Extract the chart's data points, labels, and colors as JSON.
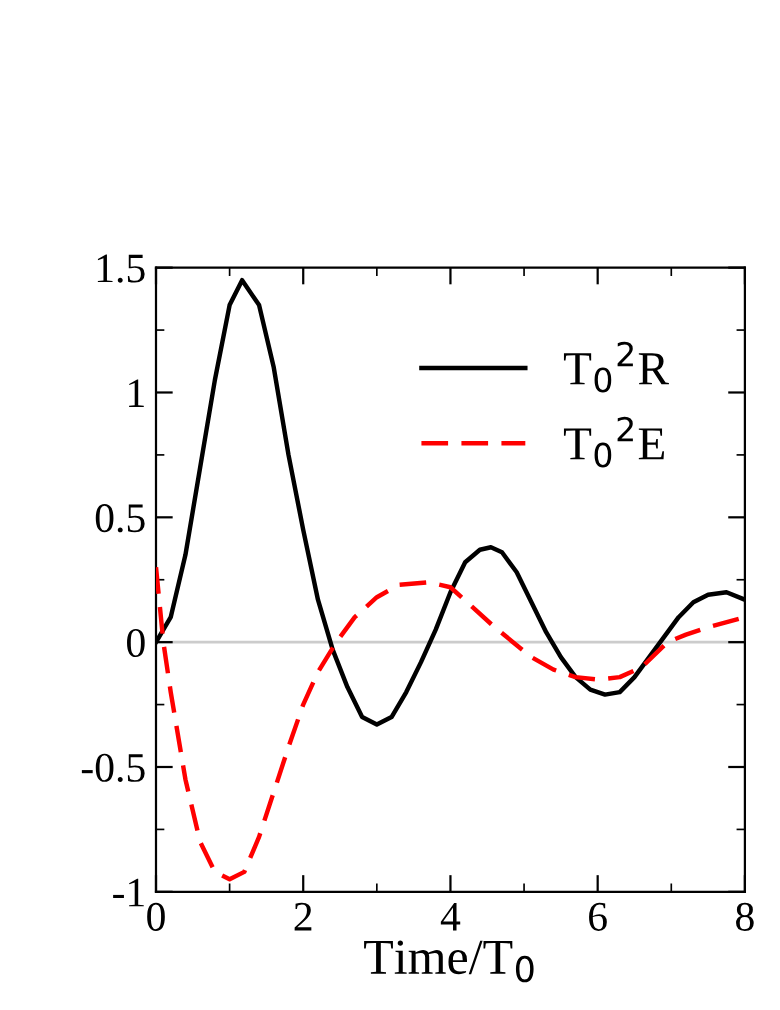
{
  "chart_data": {
    "type": "line",
    "xlabel": "Time/T$_{0}$",
    "xlim": [
      0,
      8
    ],
    "ylim": [
      -1,
      1.5
    ],
    "xticks": [
      0,
      2,
      4,
      6,
      8
    ],
    "yticks": [
      -1,
      -0.5,
      0,
      0.5,
      1,
      1.5
    ],
    "grid": false,
    "legend": "top right",
    "marker": "none",
    "ref_lines": [
      {
        "axis": "y",
        "value": 0,
        "color": "#cccccc",
        "line_style": "solid"
      }
    ],
    "series": [
      {
        "name": "T$_{0}$$^{2}$R",
        "color": "#000000",
        "line_style": "solid",
        "x": [
          0,
          0.2,
          0.4,
          0.6,
          0.8,
          1.0,
          1.17,
          1.4,
          1.6,
          1.8,
          2.0,
          2.2,
          2.4,
          2.6,
          2.8,
          3.0,
          3.2,
          3.4,
          3.6,
          3.8,
          4.0,
          4.2,
          4.4,
          4.55,
          4.7,
          4.9,
          5.1,
          5.3,
          5.5,
          5.7,
          5.9,
          6.1,
          6.3,
          6.5,
          6.7,
          6.9,
          7.1,
          7.3,
          7.5,
          7.75,
          8.0
        ],
        "values": [
          0,
          0.1,
          0.35,
          0.7,
          1.05,
          1.35,
          1.45,
          1.35,
          1.1,
          0.75,
          0.45,
          0.17,
          -0.03,
          -0.18,
          -0.3,
          -0.33,
          -0.3,
          -0.2,
          -0.08,
          0.05,
          0.2,
          0.32,
          0.37,
          0.38,
          0.36,
          0.28,
          0.16,
          0.04,
          -0.06,
          -0.14,
          -0.19,
          -0.21,
          -0.2,
          -0.14,
          -0.06,
          0.02,
          0.1,
          0.16,
          0.19,
          0.2,
          0.17
        ]
      },
      {
        "name": "T$_{0}$$^{2}$E",
        "color": "#ff0000",
        "line_style": "dashed",
        "x": [
          0,
          0.1,
          0.2,
          0.4,
          0.6,
          0.8,
          1.0,
          1.2,
          1.4,
          1.6,
          1.8,
          2.0,
          2.2,
          2.45,
          2.7,
          3.0,
          3.3,
          3.7,
          4.0,
          4.3,
          4.6,
          4.85,
          5.1,
          5.4,
          5.7,
          6.0,
          6.3,
          6.6,
          6.95,
          7.2,
          7.5,
          8.0
        ],
        "values": [
          0.3,
          0.0,
          -0.2,
          -0.55,
          -0.8,
          -0.92,
          -0.95,
          -0.92,
          -0.78,
          -0.6,
          -0.42,
          -0.25,
          -0.12,
          0.0,
          0.1,
          0.18,
          0.23,
          0.24,
          0.22,
          0.14,
          0.06,
          0.0,
          -0.06,
          -0.11,
          -0.14,
          -0.15,
          -0.14,
          -0.1,
          0.0,
          0.03,
          0.06,
          0.1
        ]
      }
    ]
  }
}
